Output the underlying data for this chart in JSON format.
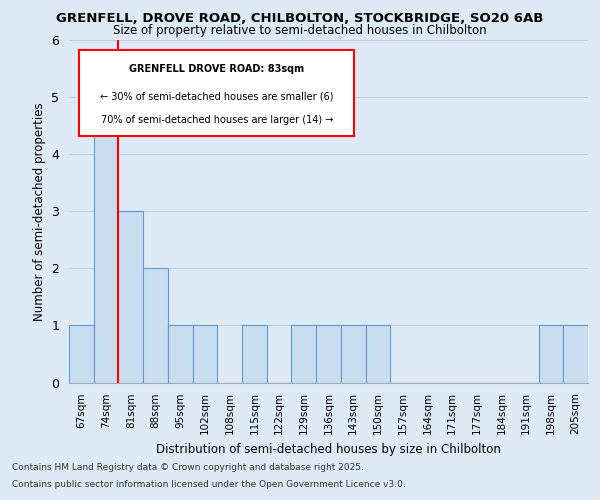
{
  "title1": "GRENFELL, DROVE ROAD, CHILBOLTON, STOCKBRIDGE, SO20 6AB",
  "title2": "Size of property relative to semi-detached houses in Chilbolton",
  "xlabel": "Distribution of semi-detached houses by size in Chilbolton",
  "ylabel": "Number of semi-detached properties",
  "footer1": "Contains HM Land Registry data © Crown copyright and database right 2025.",
  "footer2": "Contains public sector information licensed under the Open Government Licence v3.0.",
  "categories": [
    "67sqm",
    "74sqm",
    "81sqm",
    "88sqm",
    "95sqm",
    "102sqm",
    "108sqm",
    "115sqm",
    "122sqm",
    "129sqm",
    "136sqm",
    "143sqm",
    "150sqm",
    "157sqm",
    "164sqm",
    "171sqm",
    "177sqm",
    "184sqm",
    "191sqm",
    "198sqm",
    "205sqm"
  ],
  "values": [
    1,
    5,
    3,
    2,
    1,
    1,
    0,
    1,
    0,
    1,
    1,
    1,
    1,
    0,
    0,
    0,
    0,
    0,
    0,
    1,
    1
  ],
  "bar_color": "#c9ddf0",
  "bar_edge_color": "#5b9bd5",
  "annotation_title": "GRENFELL DROVE ROAD: 83sqm",
  "annotation_line1": "← 30% of semi-detached houses are smaller (6)",
  "annotation_line2": "70% of semi-detached houses are larger (14) →",
  "redline_index": 2,
  "ylim": [
    0,
    6
  ],
  "yticks": [
    0,
    1,
    2,
    3,
    4,
    5,
    6
  ],
  "bg_color": "#ddeaf6",
  "plot_bg_color": "#ddeaf6",
  "grid_color": "#c0d0e0",
  "fig_bg_color": "#ddeaf6"
}
